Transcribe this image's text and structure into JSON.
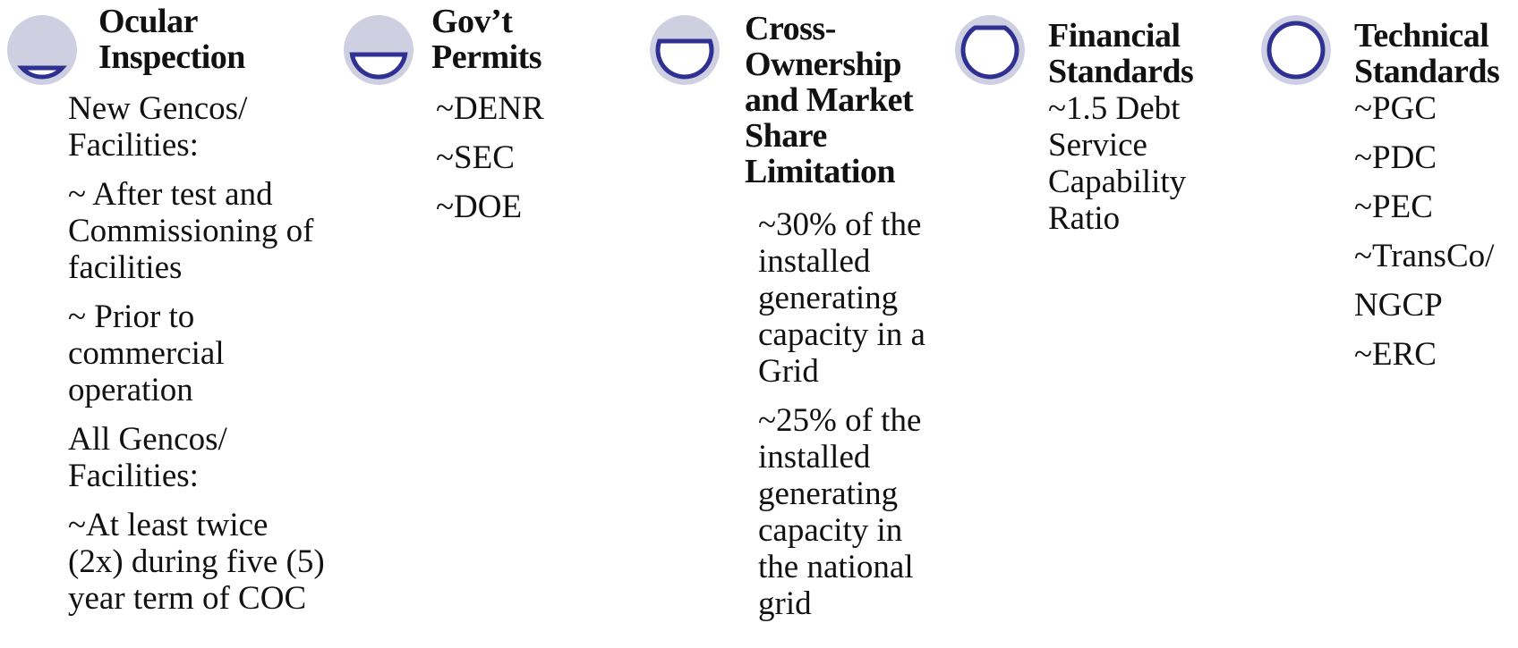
{
  "columns": [
    {
      "heading": "Ocular Inspection",
      "items": [
        "New Gencos/ Facilities:",
        "~ After test and Commissioning of facilities",
        "~ Prior to commercial operation",
        "All Gencos/ Facilities:",
        "~At least twice (2x) during five (5) year term of COC"
      ]
    },
    {
      "heading": "Gov’t Permits",
      "items": [
        "~DENR",
        "~SEC",
        "~DOE"
      ]
    },
    {
      "heading": "Cross-Ownership and Market Share Limitation",
      "items": [
        "~30% of the installed generating capacity in a Grid",
        "~25% of the installed generating capacity in the national grid"
      ]
    },
    {
      "heading": "Financial Standards",
      "items": [
        "~1.5 Debt Service Capability Ratio"
      ]
    },
    {
      "heading": "Technical Standards",
      "items": [
        "~PGC",
        "~PDC",
        "~PEC",
        "~TransCo/",
        "NGCP",
        "~ERC"
      ]
    }
  ]
}
